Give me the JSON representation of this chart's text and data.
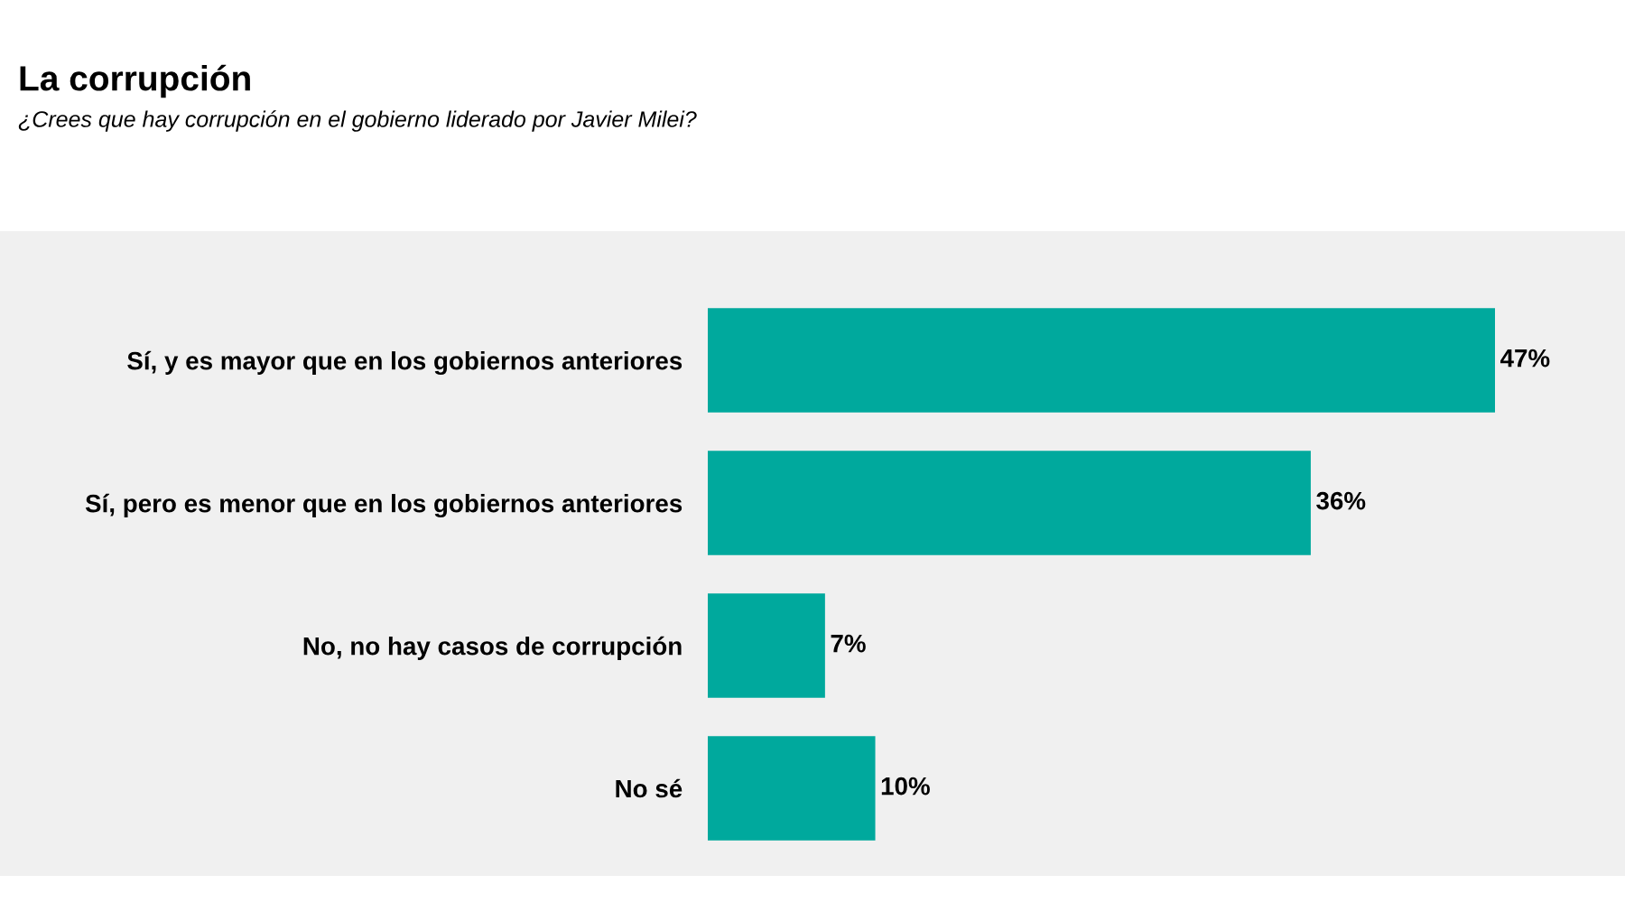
{
  "chart_data": {
    "type": "bar",
    "orientation": "horizontal",
    "title": "La corrupción",
    "subtitle": "¿Crees que hay corrupción en el gobierno liderado por Javier Milei?",
    "categories": [
      "Sí, y es mayor que en los gobiernos anteriores",
      "Sí, pero es menor que en los gobiernos anteriores",
      "No, no hay casos de corrupción",
      "No sé"
    ],
    "values": [
      47,
      36,
      7,
      10
    ],
    "value_labels": [
      "47%",
      "36%",
      "7%",
      "10%"
    ],
    "color": "#00a99d",
    "grid": false,
    "legend": false
  }
}
